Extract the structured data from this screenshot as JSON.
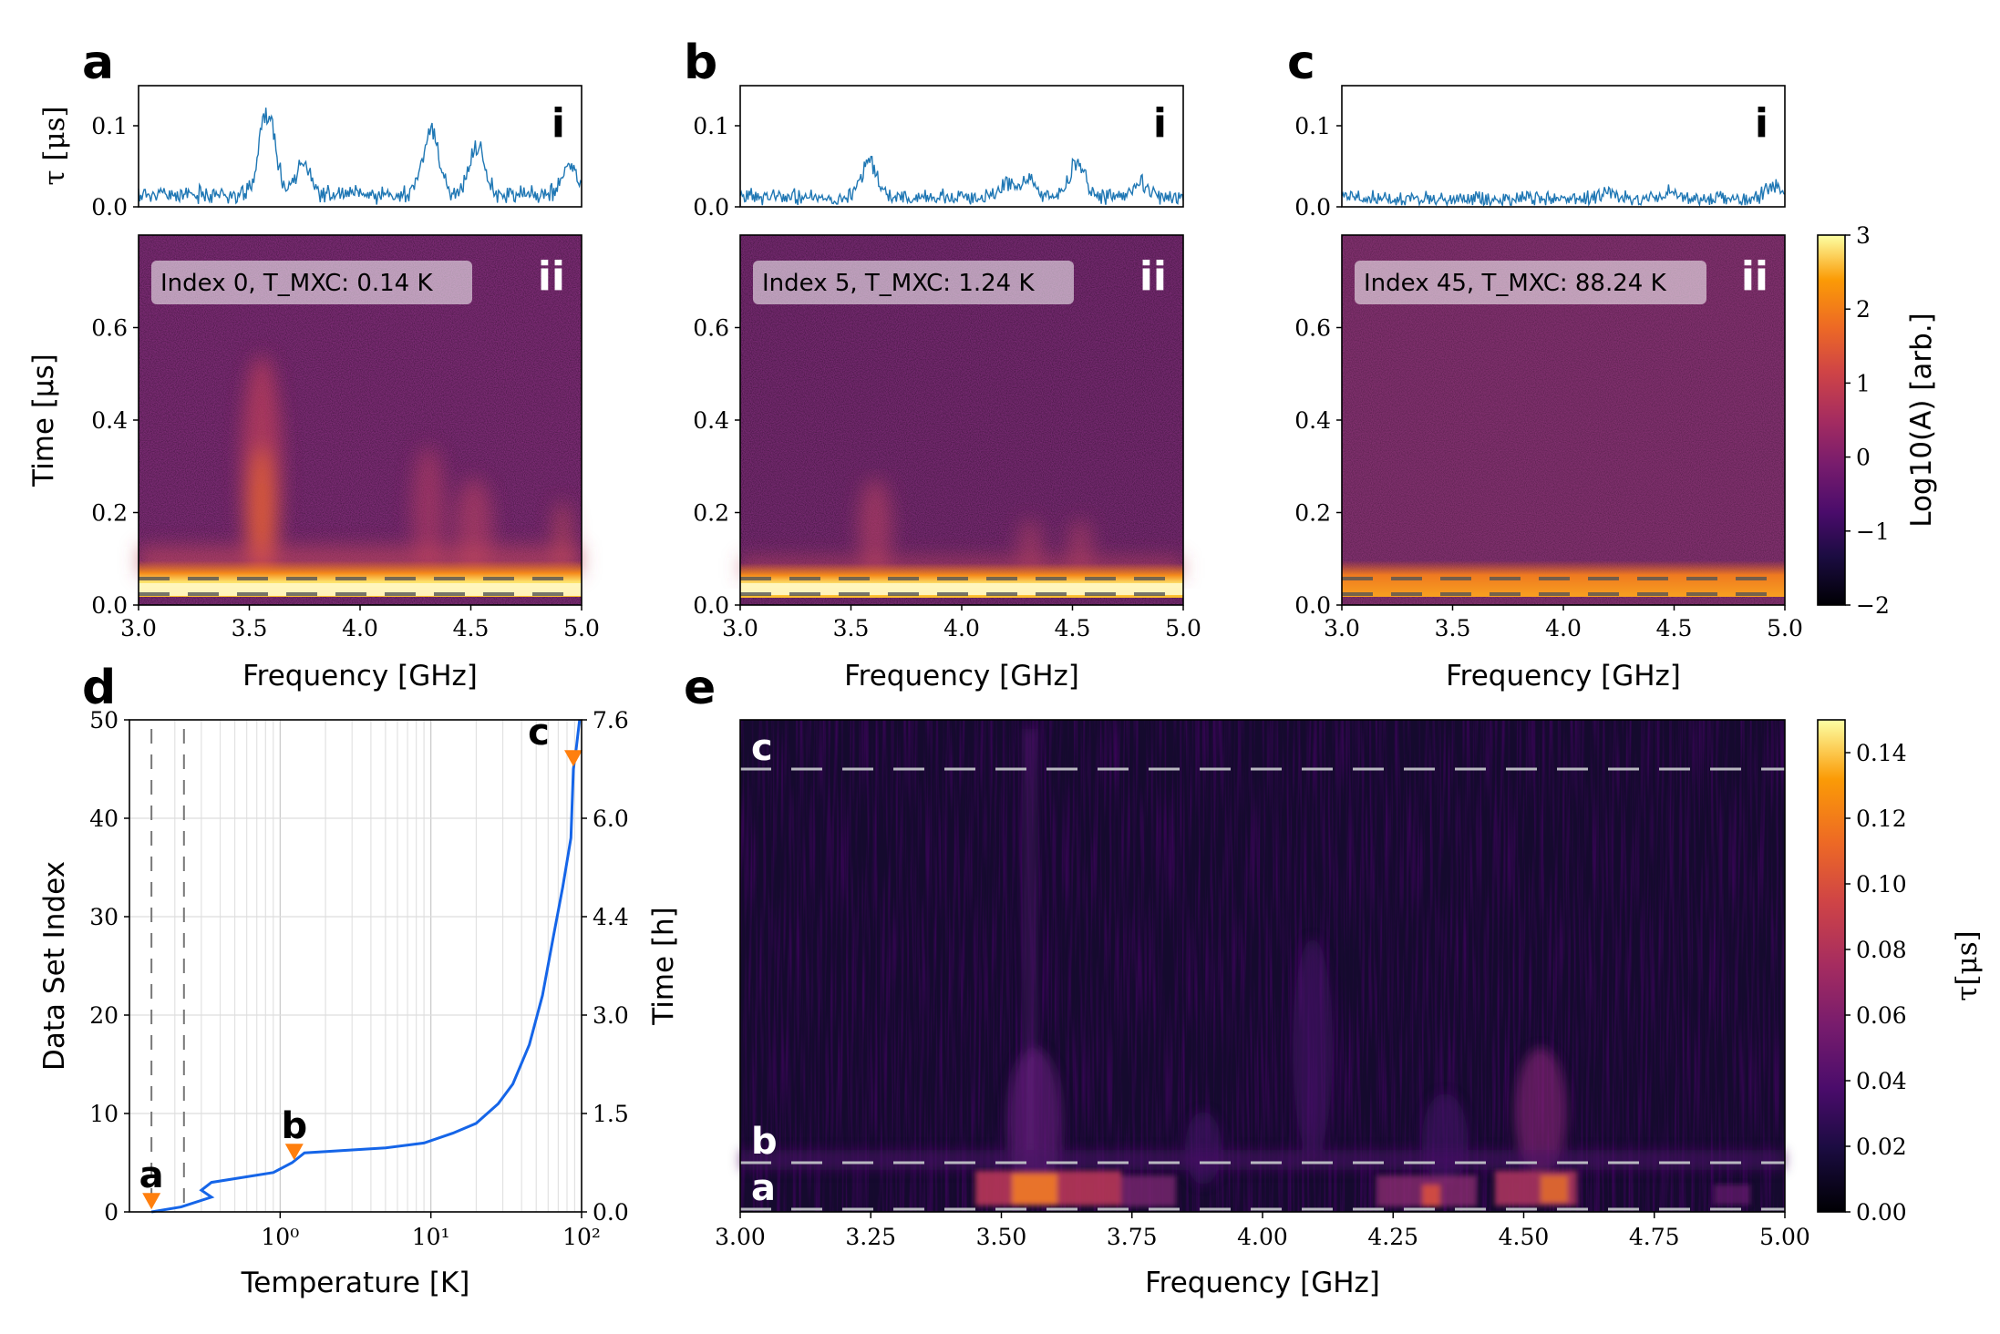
{
  "panels": {
    "a": {
      "letter": "a",
      "top_label": "i",
      "bottom_label": "ii",
      "legend": "Index 0, T_MXC: 0.14 K"
    },
    "b": {
      "letter": "b",
      "top_label": "i",
      "bottom_label": "ii",
      "legend": "Index 5, T_MXC: 1.24 K"
    },
    "c": {
      "letter": "c",
      "top_label": "i",
      "bottom_label": "ii",
      "legend": "Index 45, T_MXC: 88.24 K"
    },
    "d": {
      "letter": "d"
    },
    "e": {
      "letter": "e"
    }
  },
  "labels": {
    "tau_axis": "τ [μs]",
    "time_us_axis": "Time [μs]",
    "freq_axis": "Frequency [GHz]",
    "colorbar_amp": "Log10(A) [arb.]",
    "colorbar_tau": "τ[μs]",
    "dataset_axis": "Data Set Index",
    "time_h_axis": "Time [h]",
    "temperature_axis": "Temperature [K]"
  },
  "ticks": {
    "tau": [
      "0.0",
      "0.1"
    ],
    "time_us": [
      "0.0",
      "0.2",
      "0.4",
      "0.6"
    ],
    "freq_top": [
      "3.0",
      "3.5",
      "4.0",
      "4.5",
      "5.0"
    ],
    "amp_cbar": [
      "−2",
      "−1",
      "0",
      "1",
      "2",
      "3"
    ],
    "dataset": [
      "0",
      "10",
      "20",
      "30",
      "40",
      "50"
    ],
    "time_h": [
      "0.0",
      "1.5",
      "3.0",
      "4.4",
      "6.0",
      "7.6"
    ],
    "temperature": [
      "10⁰",
      "10¹",
      "10²"
    ],
    "freq_e": [
      "3.00",
      "3.25",
      "3.50",
      "3.75",
      "4.00",
      "4.25",
      "4.50",
      "4.75",
      "5.00"
    ],
    "tau_cbar": [
      "0.00",
      "0.02",
      "0.04",
      "0.06",
      "0.08",
      "0.10",
      "0.12",
      "0.14"
    ]
  },
  "colors": {
    "tau_trace": "#1f77b4",
    "temperature_curve": "#1565e8",
    "marker": "#ff7f0e"
  },
  "chart_data": [
    {
      "type": "line",
      "panel": "a-i",
      "xlabel": "",
      "ylabel": "τ [μs]",
      "xlim": [
        3.0,
        5.0
      ],
      "ylim": [
        0.0,
        0.15
      ],
      "peaks": [
        {
          "x": 3.58,
          "y": 0.12
        },
        {
          "x": 3.74,
          "y": 0.055
        },
        {
          "x": 4.32,
          "y": 0.095
        },
        {
          "x": 4.53,
          "y": 0.075
        },
        {
          "x": 4.95,
          "y": 0.05
        }
      ],
      "baseline": 0.015
    },
    {
      "type": "line",
      "panel": "b-i",
      "xlabel": "",
      "ylabel": "",
      "xlim": [
        3.0,
        5.0
      ],
      "ylim": [
        0.0,
        0.15
      ],
      "peaks": [
        {
          "x": 3.58,
          "y": 0.055
        },
        {
          "x": 4.2,
          "y": 0.03
        },
        {
          "x": 4.3,
          "y": 0.035
        },
        {
          "x": 4.52,
          "y": 0.055
        },
        {
          "x": 4.8,
          "y": 0.03
        }
      ],
      "baseline": 0.012
    },
    {
      "type": "line",
      "panel": "c-i",
      "xlabel": "",
      "ylabel": "",
      "xlim": [
        3.0,
        5.0
      ],
      "ylim": [
        0.0,
        0.15
      ],
      "peaks": [
        {
          "x": 4.2,
          "y": 0.02
        },
        {
          "x": 4.5,
          "y": 0.02
        },
        {
          "x": 4.95,
          "y": 0.025
        }
      ],
      "baseline": 0.01
    },
    {
      "type": "heatmap",
      "panel": "a-ii",
      "xlabel": "Frequency [GHz]",
      "ylabel": "Time [μs]",
      "xlim": [
        3.0,
        5.0
      ],
      "ylim": [
        0.0,
        0.8
      ],
      "colorbar_range": [
        -2,
        3
      ],
      "dashed_lines_y": [
        0.025,
        0.055
      ]
    },
    {
      "type": "heatmap",
      "panel": "b-ii",
      "xlabel": "Frequency [GHz]",
      "ylabel": "",
      "xlim": [
        3.0,
        5.0
      ],
      "ylim": [
        0.0,
        0.8
      ],
      "colorbar_range": [
        -2,
        3
      ],
      "dashed_lines_y": [
        0.025,
        0.055
      ]
    },
    {
      "type": "heatmap",
      "panel": "c-ii",
      "xlabel": "Frequency [GHz]",
      "ylabel": "",
      "xlim": [
        3.0,
        5.0
      ],
      "ylim": [
        0.0,
        0.8
      ],
      "colorbar_range": [
        -2,
        3
      ],
      "dashed_lines_y": [
        0.025,
        0.055
      ]
    },
    {
      "type": "line",
      "panel": "d",
      "xlabel": "Temperature [K]",
      "ylabel": "Data Set Index",
      "y2label": "Time [h]",
      "xscale": "log",
      "xlim": [
        0.1,
        100
      ],
      "ylim": [
        0,
        50
      ],
      "y2lim": [
        0.0,
        7.6
      ],
      "x": [
        0.14,
        0.22,
        0.35,
        0.3,
        0.35,
        0.9,
        1.2,
        1.45,
        5,
        9,
        14,
        20,
        28,
        35,
        45,
        55,
        65,
        75,
        85,
        88.24,
        92,
        97
      ],
      "y": [
        0,
        0.5,
        1.5,
        2.2,
        3,
        4,
        5,
        6,
        6.5,
        7,
        8,
        9,
        11,
        13,
        17,
        22,
        28,
        33,
        38,
        45,
        47,
        50
      ],
      "markers": [
        {
          "label": "a",
          "x": 0.14,
          "y": 1
        },
        {
          "label": "b",
          "x": 1.24,
          "y": 6
        },
        {
          "label": "c",
          "x": 88.24,
          "y": 46
        }
      ],
      "vlines_x": [
        0.14,
        0.23
      ]
    },
    {
      "type": "heatmap",
      "panel": "e",
      "xlabel": "Frequency [GHz]",
      "ylabel": "",
      "xlim": [
        3.0,
        5.0
      ],
      "ylim": [
        0,
        50
      ],
      "colorbar_label": "τ[μs]",
      "colorbar_range": [
        0.0,
        0.15
      ],
      "hlines": [
        {
          "label": "a",
          "y": 0
        },
        {
          "label": "b",
          "y": 5
        },
        {
          "label": "c",
          "y": 45
        }
      ]
    }
  ]
}
